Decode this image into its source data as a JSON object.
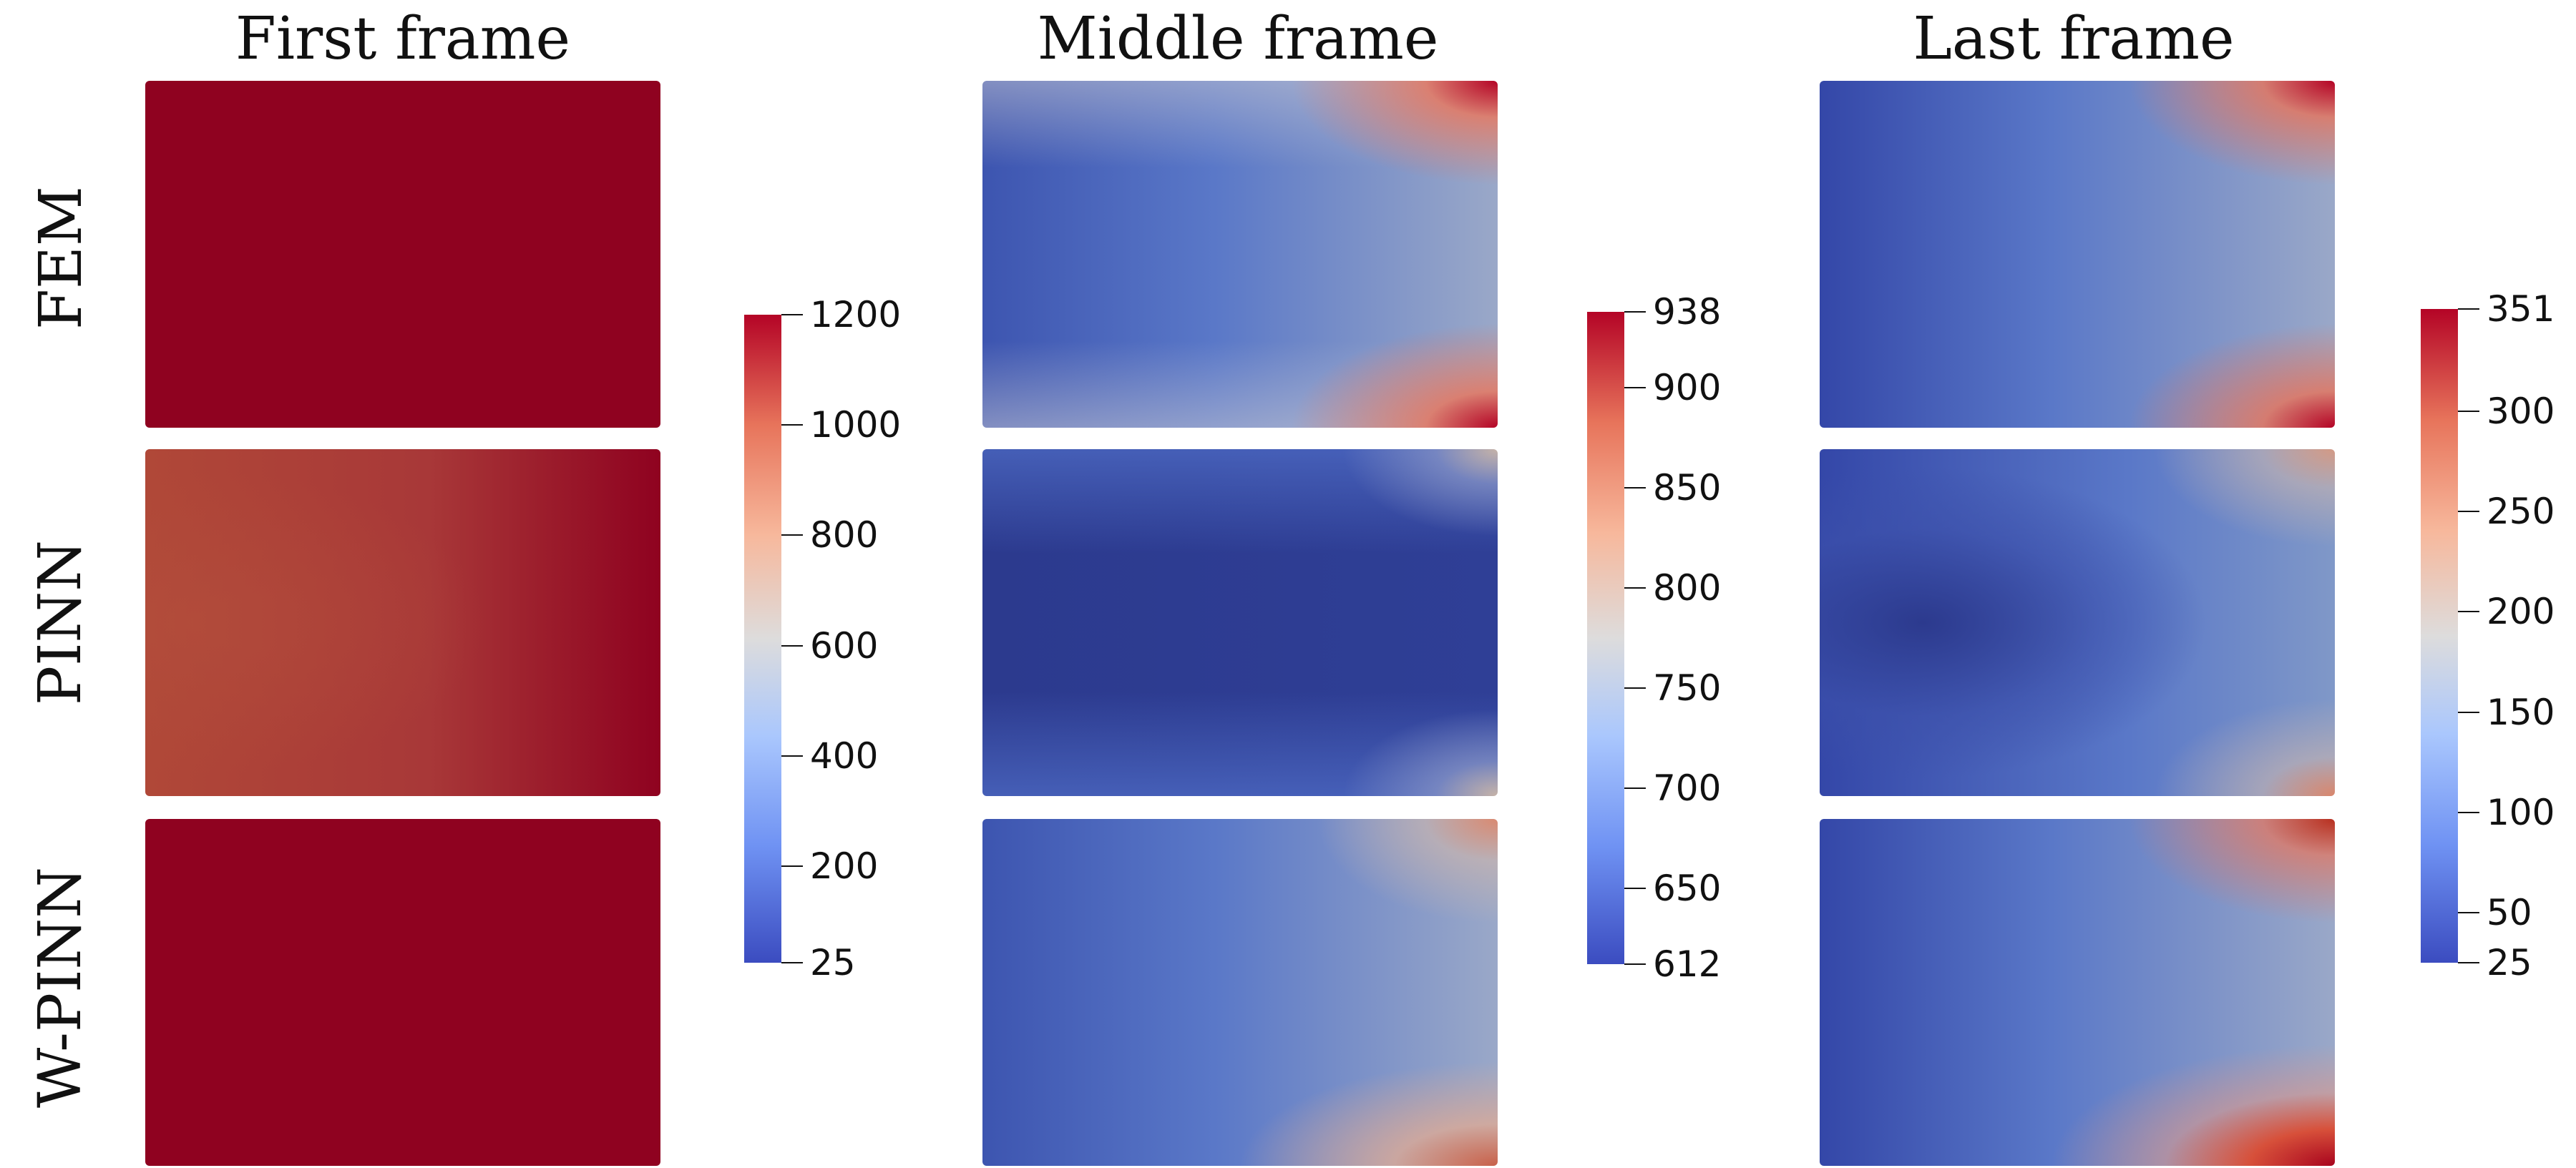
{
  "columns": [
    {
      "title": "First frame"
    },
    {
      "title": "Middle frame"
    },
    {
      "title": "Last frame"
    }
  ],
  "rows": [
    {
      "label": "FEM"
    },
    {
      "label": "PINN"
    },
    {
      "label": "W-PINN"
    }
  ],
  "colorbars": [
    {
      "min": 25,
      "max": 1200,
      "ticks": [
        "1200",
        "1000",
        "800",
        "600",
        "400",
        "200",
        "25"
      ],
      "tick_values": [
        1200,
        1000,
        800,
        600,
        400,
        200,
        25
      ]
    },
    {
      "min": 612,
      "max": 938,
      "ticks": [
        "938",
        "900",
        "850",
        "800",
        "750",
        "700",
        "650",
        "612"
      ],
      "tick_values": [
        938,
        900,
        850,
        800,
        750,
        700,
        650,
        612
      ]
    },
    {
      "min": 25,
      "max": 351,
      "ticks": [
        "351",
        "300",
        "250",
        "200",
        "150",
        "100",
        "50",
        "25"
      ],
      "tick_values": [
        351,
        300,
        250,
        200,
        150,
        100,
        50,
        25
      ]
    }
  ],
  "colormap": {
    "low": "#3b4cc0",
    "mid": "#dddcdc",
    "high": "#b40426",
    "deep_red": "#8f0220",
    "deep_blue": "#2c3a8e"
  }
}
